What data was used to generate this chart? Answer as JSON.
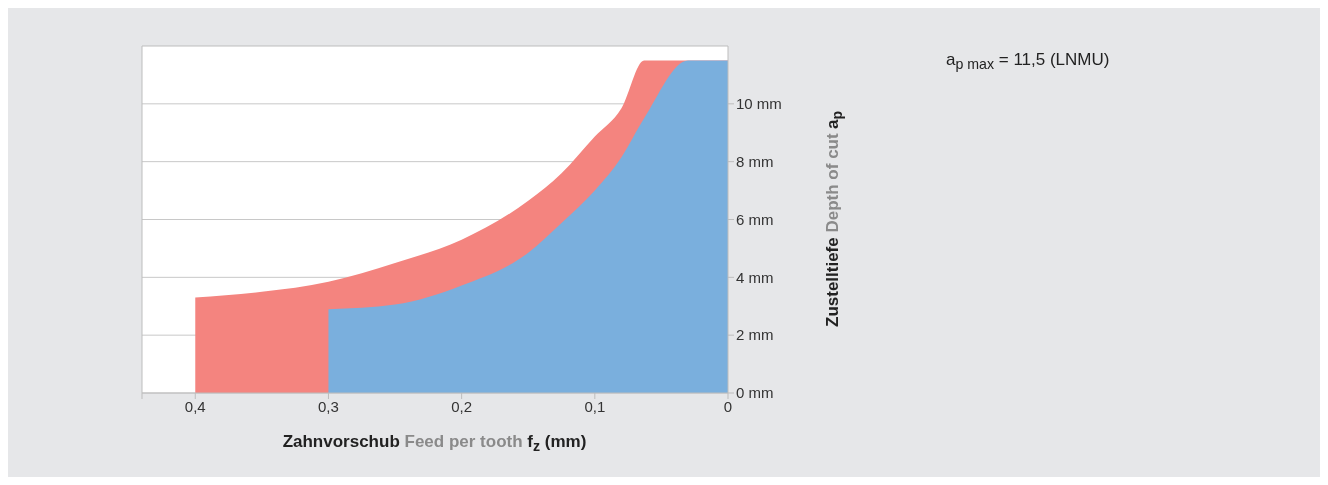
{
  "chart_data": {
    "type": "area",
    "xlabel": "Zahnvorschub Feed per tooth f$_{z}$ (mm)",
    "ylabel": "Zustelltiefe Depth of cut a$_{p}$",
    "annotations": [
      "a$_{p max}$ = 11,5 (LNMU)"
    ],
    "xlim": [
      0.44,
      0
    ],
    "xticks": [
      {
        "value": 0.44,
        "label": null
      },
      {
        "value": 0.4,
        "label": "0,4"
      },
      {
        "value": 0.3,
        "label": "0,3"
      },
      {
        "value": 0.2,
        "label": "0,2"
      },
      {
        "value": 0.1,
        "label": "0,1"
      },
      0
    ],
    "ylim": [
      0,
      12
    ],
    "yticks": [
      {
        "value": 0,
        "label": "0 mm"
      },
      {
        "value": 2,
        "label": "2 mm"
      },
      {
        "value": 4,
        "label": "4 mm"
      },
      {
        "value": 6,
        "label": "6 mm"
      },
      {
        "value": 8,
        "label": "8 mm"
      },
      {
        "value": 10,
        "label": "10 mm"
      }
    ],
    "grid": "y",
    "x": [
      0.4,
      0.35,
      0.3,
      0.25,
      0.2,
      0.15,
      0.125,
      0.1,
      0.08,
      0.063,
      0.03,
      0
    ],
    "series": [
      {
        "color": "#f4847f",
        "values": [
          3.3,
          3.5,
          3.85,
          4.5,
          5.3,
          6.65,
          7.6,
          8.87,
          9.85,
          11.5,
          11.5,
          11.5
        ]
      },
      {
        "color": "#7aafdd",
        "values": [
          null,
          null,
          2.9,
          3.06,
          3.72,
          4.85,
          5.88,
          7.0,
          8.15,
          9.5,
          11.5,
          11.5
        ]
      }
    ]
  }
}
